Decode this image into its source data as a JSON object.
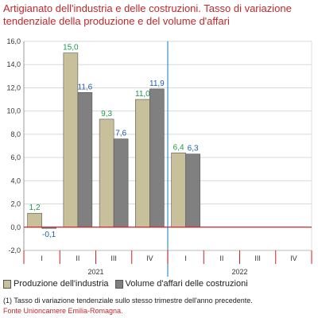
{
  "chart_data": {
    "type": "bar",
    "title": "Artigianato dell'industria e delle costruzioni. Tasso di variazione tendenziale della produzione e del volume d'affari",
    "categories": [
      "I",
      "II",
      "III",
      "IV",
      "I",
      "II",
      "III",
      "IV"
    ],
    "groups": [
      {
        "label": "2021",
        "quarters": [
          0,
          1,
          2,
          3
        ]
      },
      {
        "label": "2022",
        "quarters": [
          4,
          5,
          6,
          7
        ]
      }
    ],
    "series": [
      {
        "name": "Produzione dell'industria",
        "values": [
          1.2,
          15.0,
          9.3,
          11.0,
          6.4,
          null,
          null,
          null
        ],
        "value_labels": [
          "1,2",
          "15,0",
          "9,3",
          "11,0",
          "6,4",
          "",
          "",
          ""
        ],
        "fill": "#c8c09a",
        "label_color": "#1a9a4a"
      },
      {
        "name": "Volume d'affari delle costruzioni",
        "values": [
          -0.1,
          11.6,
          7.6,
          11.9,
          6.3,
          null,
          null,
          null
        ],
        "value_labels": [
          "-0,1",
          "11,6",
          "7,6",
          "11,9",
          "6,3",
          "",
          "",
          ""
        ],
        "fill": "#808080",
        "label_color": "#1c5ea8"
      }
    ],
    "ylim": [
      -2.0,
      16.0
    ],
    "yticks": [
      "-2,0",
      "0,0",
      "2,0",
      "4,0",
      "6,0",
      "8,0",
      "10,0",
      "12,0",
      "14,0",
      "16,0"
    ],
    "grid": true,
    "legend": "bottom",
    "xlabel": "",
    "ylabel": "",
    "colors": {
      "title": "#c0282b",
      "zero_line": "#d02020",
      "divider": "#3a8fd0",
      "grid": "#d9d9d9"
    }
  },
  "legend": {
    "production": "Produzione dell'industria",
    "volume": "Volume d'affari delle costruzioni"
  },
  "footnote": "(1) Tasso di variazione tendenziale sullo stesso trimestre dell'anno precedente.",
  "source": "Fonte Unioncamere Emilia-Romagna."
}
